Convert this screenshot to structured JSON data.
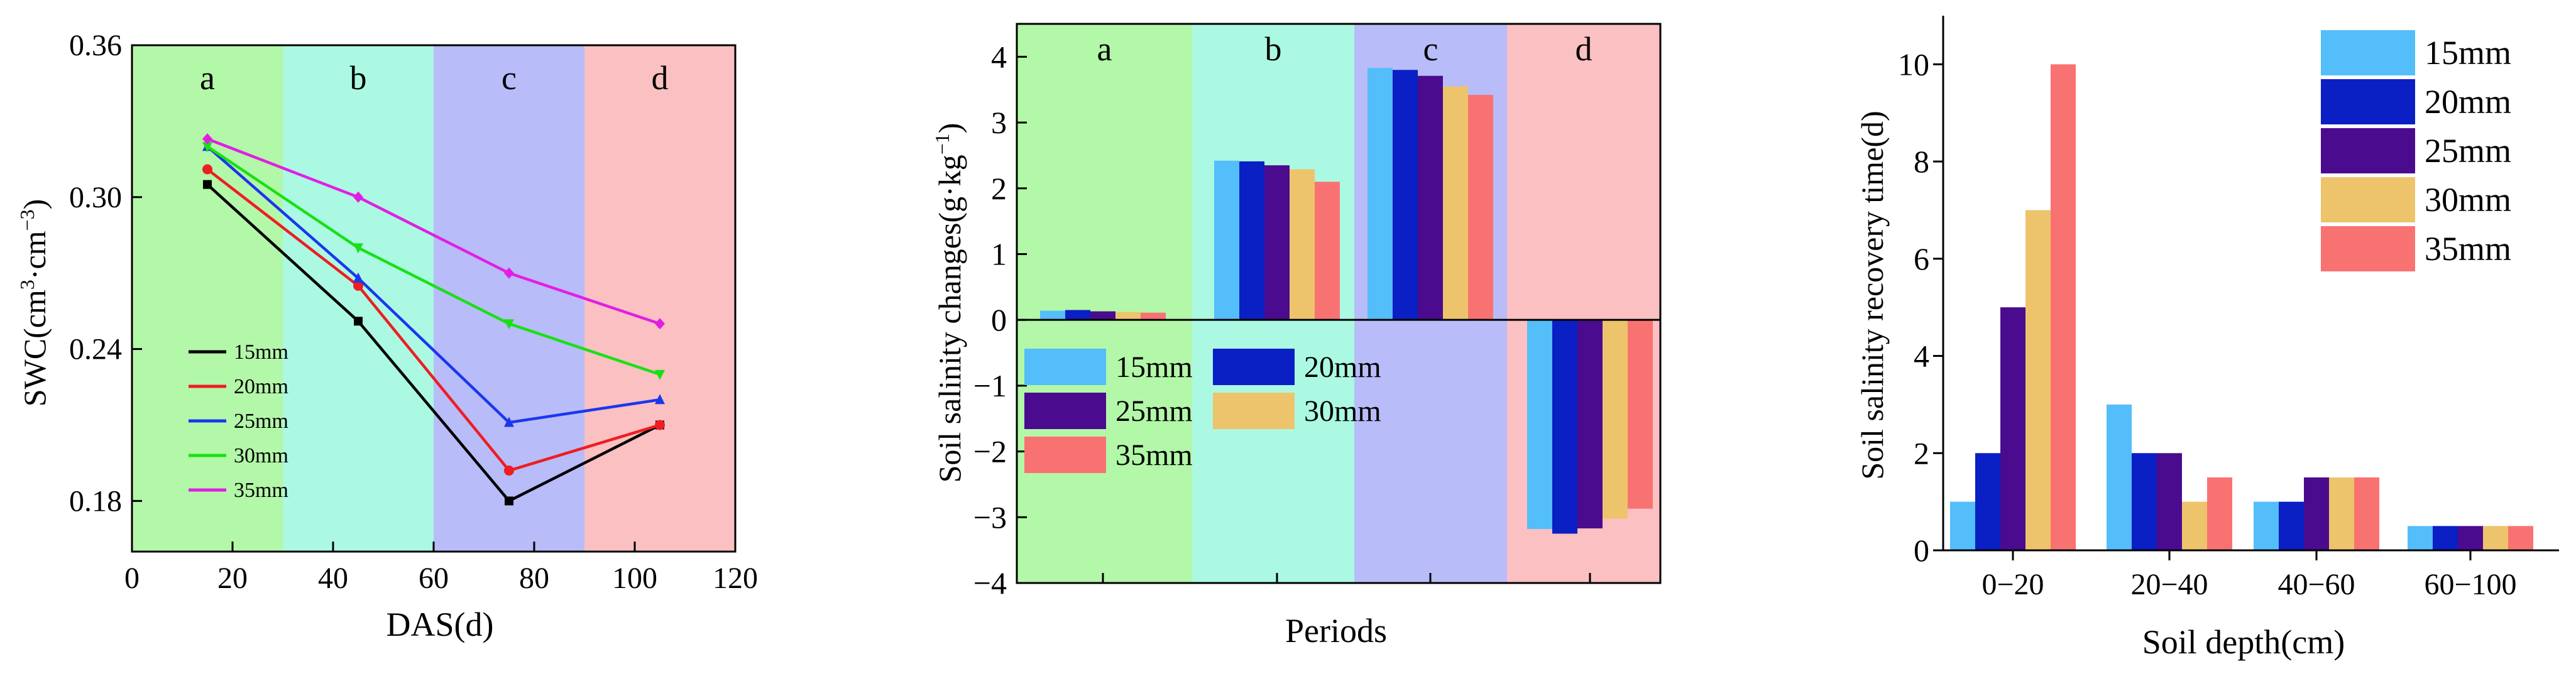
{
  "chart_data": [
    {
      "type": "line",
      "title": "",
      "xlabel": "DAS(d)",
      "ylabel_main": "SWC(cm",
      "ylabel_sup1": "3",
      "ylabel_mid": "·cm",
      "ylabel_sup2": "−3",
      "ylabel_end": ")",
      "xlim": [
        0,
        120
      ],
      "ylim": [
        0.16,
        0.36
      ],
      "xticks": [
        0,
        20,
        40,
        60,
        80,
        100,
        120
      ],
      "yticks": [
        0.18,
        0.24,
        0.3,
        0.36
      ],
      "xtick_labels": [
        "0",
        "20",
        "40",
        "60",
        "80",
        "100",
        "120"
      ],
      "ytick_labels": [
        "0.18",
        "0.24",
        "0.30",
        "0.36"
      ],
      "bands": [
        {
          "label": "a",
          "from": 0,
          "to": 30,
          "color": "#b3f7a8"
        },
        {
          "label": "b",
          "from": 30,
          "to": 60,
          "color": "#abf9e2"
        },
        {
          "label": "c",
          "from": 60,
          "to": 90,
          "color": "#b8bcf8"
        },
        {
          "label": "d",
          "from": 90,
          "to": 120,
          "color": "#fac0c2"
        }
      ],
      "x": [
        15,
        45,
        75,
        105
      ],
      "series": [
        {
          "name": "15mm",
          "color": "#000000",
          "marker": "square",
          "values": [
            0.305,
            0.251,
            0.18,
            0.21
          ]
        },
        {
          "name": "20mm",
          "color": "#ee1d23",
          "marker": "circle",
          "values": [
            0.311,
            0.265,
            0.192,
            0.21
          ]
        },
        {
          "name": "25mm",
          "color": "#1a37ee",
          "marker": "triangle-up",
          "values": [
            0.32,
            0.268,
            0.211,
            0.22
          ]
        },
        {
          "name": "30mm",
          "color": "#19e014",
          "marker": "triangle-down",
          "values": [
            0.32,
            0.28,
            0.25,
            0.23
          ]
        },
        {
          "name": "35mm",
          "color": "#e21ee5",
          "marker": "diamond",
          "values": [
            0.323,
            0.3,
            0.27,
            0.25
          ]
        }
      ],
      "legend": "lower-left"
    },
    {
      "type": "bar",
      "title": "",
      "xlabel": "Periods",
      "ylabel_main": "Soil salinity changes(g·kg",
      "ylabel_sup": "−1",
      "ylabel_end": ")",
      "ylim": [
        -4,
        4.5
      ],
      "yticks": [
        -4,
        -3,
        -2,
        -1,
        0,
        1,
        2,
        3,
        4
      ],
      "ytick_labels": [
        "−4",
        "−3",
        "−2",
        "−1",
        "0",
        "1",
        "2",
        "3",
        "4"
      ],
      "categories": [
        "a",
        "b",
        "c",
        "d"
      ],
      "band_colors": [
        "#b3f7a8",
        "#abf9e2",
        "#b8bcf8",
        "#fac0c2"
      ],
      "series": [
        {
          "name": "15mm",
          "color": "#53bef9",
          "values": [
            0.14,
            2.42,
            3.83,
            -3.18
          ]
        },
        {
          "name": "20mm",
          "color": "#0a1fc4",
          "values": [
            0.15,
            2.41,
            3.8,
            -3.25
          ]
        },
        {
          "name": "25mm",
          "color": "#4a0b8f",
          "values": [
            0.13,
            2.35,
            3.71,
            -3.17
          ]
        },
        {
          "name": "30mm",
          "color": "#edc46c",
          "values": [
            0.12,
            2.29,
            3.55,
            -3.02
          ]
        },
        {
          "name": "35mm",
          "color": "#f97272",
          "values": [
            0.11,
            2.1,
            3.42,
            -2.87
          ]
        }
      ],
      "legend": "lower-left"
    },
    {
      "type": "bar",
      "title": "",
      "xlabel": "Soil depth(cm)",
      "ylabel": "Soil salinity recovery time(d)",
      "ylim": [
        0,
        11
      ],
      "yticks": [
        0,
        2,
        4,
        6,
        8,
        10
      ],
      "ytick_labels": [
        "0",
        "2",
        "4",
        "6",
        "8",
        "10"
      ],
      "categories": [
        "0−20",
        "20−40",
        "40−60",
        "60−100"
      ],
      "series": [
        {
          "name": "15mm",
          "color": "#53bef9",
          "values": [
            1,
            3,
            1,
            0.5
          ]
        },
        {
          "name": "20mm",
          "color": "#0a1fc4",
          "values": [
            2,
            2,
            1,
            0.5
          ]
        },
        {
          "name": "25mm",
          "color": "#4a0b8f",
          "values": [
            5,
            2,
            1.5,
            0.5
          ]
        },
        {
          "name": "30mm",
          "color": "#edc46c",
          "values": [
            7,
            1,
            1.5,
            0.5
          ]
        },
        {
          "name": "35mm",
          "color": "#f97272",
          "values": [
            10,
            1.5,
            1.5,
            0.5
          ]
        }
      ],
      "legend": "top-right"
    }
  ]
}
